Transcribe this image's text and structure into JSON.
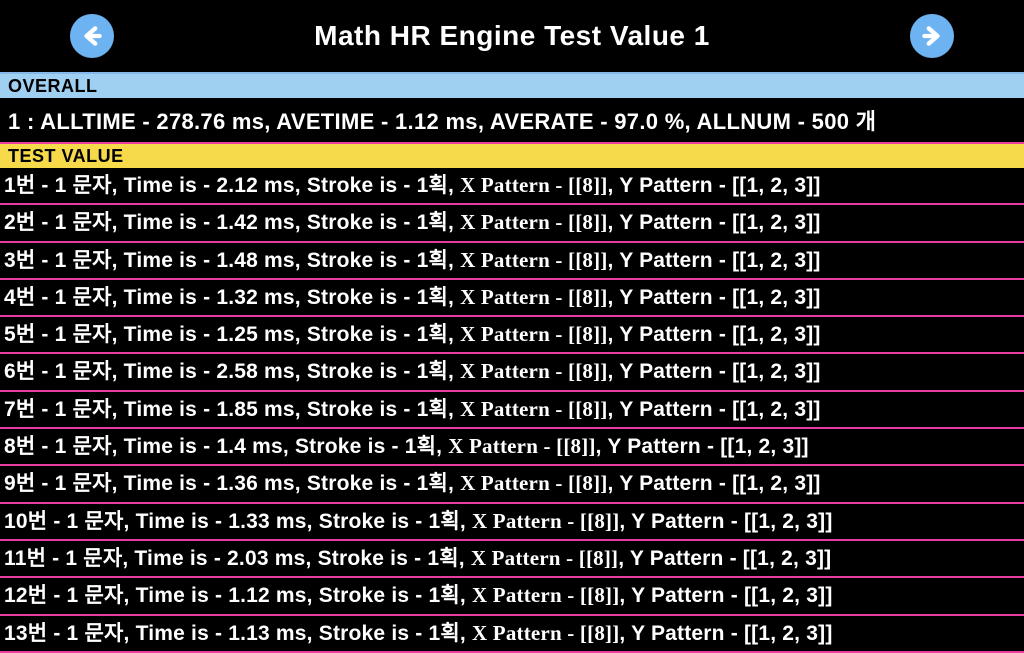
{
  "header": {
    "title": "Math HR Engine Test Value 1"
  },
  "colors": {
    "background": "#000000",
    "text": "#ffffff",
    "overall_bg": "#9fd0f2",
    "test_bg": "#f6da4a",
    "row_border": "#e83ca0",
    "nav_button": "#6db3f2",
    "header_border": "#85b7e8"
  },
  "sections": {
    "overall_label": "OVERALL",
    "test_label": "TEST VALUE"
  },
  "overall": {
    "index": "1",
    "alltime": "278.76 ms",
    "avetime": "1.12 ms",
    "averate": "97.0 %",
    "allnum": "500 개"
  },
  "rows": [
    {
      "n": "1",
      "chars": "1",
      "time": "2.12 ms",
      "stroke": "1",
      "xpat": "[[8]]",
      "ypat": "[[1, 2, 3]]"
    },
    {
      "n": "2",
      "chars": "1",
      "time": "1.42 ms",
      "stroke": "1",
      "xpat": "[[8]]",
      "ypat": "[[1, 2, 3]]"
    },
    {
      "n": "3",
      "chars": "1",
      "time": "1.48 ms",
      "stroke": "1",
      "xpat": "[[8]]",
      "ypat": "[[1, 2, 3]]"
    },
    {
      "n": "4",
      "chars": "1",
      "time": "1.32 ms",
      "stroke": "1",
      "xpat": "[[8]]",
      "ypat": "[[1, 2, 3]]"
    },
    {
      "n": "5",
      "chars": "1",
      "time": "1.25 ms",
      "stroke": "1",
      "xpat": "[[8]]",
      "ypat": "[[1, 2, 3]]"
    },
    {
      "n": "6",
      "chars": "1",
      "time": "2.58 ms",
      "stroke": "1",
      "xpat": "[[8]]",
      "ypat": "[[1, 2, 3]]"
    },
    {
      "n": "7",
      "chars": "1",
      "time": "1.85 ms",
      "stroke": "1",
      "xpat": "[[8]]",
      "ypat": "[[1, 2, 3]]"
    },
    {
      "n": "8",
      "chars": "1",
      "time": "1.4 ms",
      "stroke": "1",
      "xpat": "[[8]]",
      "ypat": "[[1, 2, 3]]"
    },
    {
      "n": "9",
      "chars": "1",
      "time": "1.36 ms",
      "stroke": "1",
      "xpat": "[[8]]",
      "ypat": "[[1, 2, 3]]"
    },
    {
      "n": "10",
      "chars": "1",
      "time": "1.33 ms",
      "stroke": "1",
      "xpat": "[[8]]",
      "ypat": "[[1, 2, 3]]"
    },
    {
      "n": "11",
      "chars": "1",
      "time": "2.03 ms",
      "stroke": "1",
      "xpat": "[[8]]",
      "ypat": "[[1, 2, 3]]"
    },
    {
      "n": "12",
      "chars": "1",
      "time": "1.12 ms",
      "stroke": "1",
      "xpat": "[[8]]",
      "ypat": "[[1, 2, 3]]"
    },
    {
      "n": "13",
      "chars": "1",
      "time": "1.13 ms",
      "stroke": "1",
      "xpat": "[[8]]",
      "ypat": "[[1, 2, 3]]"
    }
  ],
  "labels": {
    "bun": "번",
    "munja": "문자",
    "time_is": "Time is",
    "stroke_is": "Stroke is",
    "hoek": "획",
    "xpattern": "X Pattern",
    "ypattern": "Y Pattern",
    "alltime": "ALLTIME",
    "avetime": "AVETIME",
    "averate": "AVERATE",
    "allnum": "ALLNUM"
  }
}
